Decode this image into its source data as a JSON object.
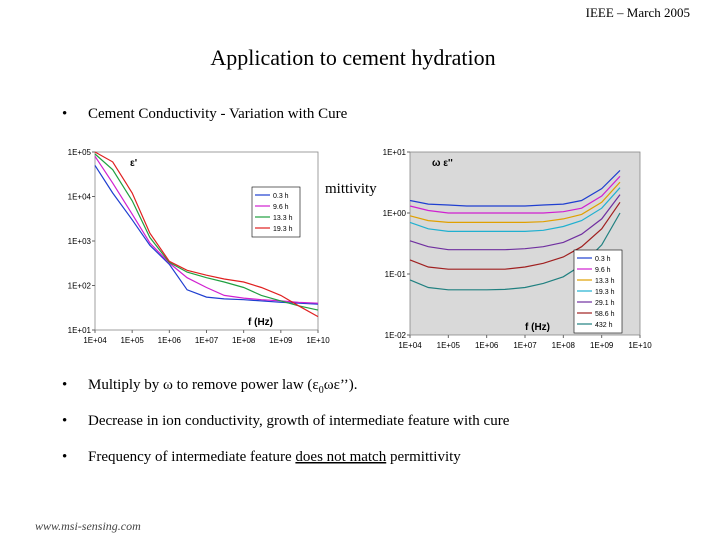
{
  "header": {
    "text": "IEEE – March 2005"
  },
  "title": "Application to cement hydration",
  "bullets": [
    {
      "text": "Cement Conductivity - Variation with Cure"
    },
    {
      "text": "mittivity"
    },
    {
      "parts": [
        "Multiply by ω to remove power law (ε",
        "0",
        "ωε’’)."
      ]
    },
    {
      "text": "Decrease in ion conductivity, growth of intermediate feature with cure"
    },
    {
      "parts": [
        "Frequency of intermediate feature ",
        "does not match",
        " permittivity"
      ]
    }
  ],
  "footer": "www.msi-sensing.com",
  "chart_data": [
    {
      "type": "line",
      "y_label": "ε'",
      "x_label": "f (Hz)",
      "log_x": true,
      "log_y": true,
      "legend": "upper right",
      "x": [
        10000,
        30000,
        100000,
        300000,
        1000000,
        3000000,
        10000000,
        30000000,
        100000000,
        300000000,
        1000000000,
        3000000000,
        10000000000
      ],
      "xlim": [
        10000,
        10000000000
      ],
      "xticks": [
        {
          "value": 10000,
          "label": "1E+04"
        },
        {
          "value": 100000,
          "label": "1E+05"
        },
        {
          "value": 1000000,
          "label": "1E+06"
        },
        {
          "value": 10000000,
          "label": "1E+07"
        },
        {
          "value": 100000000,
          "label": "1E+08"
        },
        {
          "value": 1000000000,
          "label": "1E+09"
        },
        {
          "value": 10000000000,
          "label": "1E+10"
        }
      ],
      "ylim": [
        10,
        100000
      ],
      "yticks": [
        {
          "value": 100000,
          "label": "1E+05"
        },
        {
          "value": 10000,
          "label": "1E+04"
        },
        {
          "value": 1000,
          "label": "1E+03"
        },
        {
          "value": 100,
          "label": "1E+02"
        },
        {
          "value": 10,
          "label": "1E+01"
        }
      ],
      "series": [
        {
          "name": "0.3 h",
          "color": "#1f3fd0",
          "values": [
            50000,
            12000,
            3000,
            800,
            300,
            80,
            55,
            50,
            48,
            45,
            42,
            40,
            38
          ]
        },
        {
          "name": "9.6 h",
          "color": "#d020d0",
          "values": [
            80000,
            20000,
            4000,
            900,
            320,
            150,
            90,
            60,
            52,
            48,
            45,
            42,
            40
          ]
        },
        {
          "name": "13.3 h",
          "color": "#20a040",
          "values": [
            90000,
            40000,
            8000,
            1200,
            330,
            200,
            150,
            120,
            90,
            60,
            45,
            35,
            28
          ]
        },
        {
          "name": "19.3 h",
          "color": "#e02020",
          "values": [
            100000,
            60000,
            12000,
            1500,
            350,
            220,
            170,
            140,
            120,
            90,
            60,
            35,
            20
          ]
        }
      ]
    },
    {
      "type": "line",
      "y_label": "ω ε''",
      "x_label": "f (Hz)",
      "log_x": true,
      "log_y": true,
      "legend": "lower right",
      "x": [
        10000,
        30000,
        100000,
        300000,
        1000000,
        3000000,
        10000000,
        30000000,
        100000000,
        300000000,
        1000000000,
        3000000000
      ],
      "xlim": [
        10000,
        10000000000
      ],
      "xticks": [
        {
          "value": 10000,
          "label": "1E+04"
        },
        {
          "value": 100000,
          "label": "1E+05"
        },
        {
          "value": 1000000,
          "label": "1E+06"
        },
        {
          "value": 10000000,
          "label": "1E+07"
        },
        {
          "value": 100000000,
          "label": "1E+08"
        },
        {
          "value": 1000000000,
          "label": "1E+09"
        },
        {
          "value": 10000000000,
          "label": "1E+10"
        }
      ],
      "ylim": [
        0.01,
        10
      ],
      "yticks": [
        {
          "value": 10,
          "label": "1E+01"
        },
        {
          "value": 1,
          "label": "1E+00"
        },
        {
          "value": 0.1,
          "label": "1E-01"
        },
        {
          "value": 0.01,
          "label": "1E-02"
        }
      ],
      "series": [
        {
          "name": "0.3 h",
          "color": "#1f3fd0",
          "values": [
            1.6,
            1.4,
            1.35,
            1.3,
            1.3,
            1.3,
            1.3,
            1.35,
            1.4,
            1.6,
            2.5,
            5
          ]
        },
        {
          "name": "9.6 h",
          "color": "#d020d0",
          "values": [
            1.3,
            1.1,
            1.0,
            1.0,
            1.0,
            1.0,
            1.0,
            1.0,
            1.05,
            1.2,
            1.9,
            4
          ]
        },
        {
          "name": "13.3 h",
          "color": "#e0a000",
          "values": [
            0.9,
            0.75,
            0.7,
            0.7,
            0.7,
            0.7,
            0.7,
            0.72,
            0.8,
            0.95,
            1.5,
            3.2
          ]
        },
        {
          "name": "19.3 h",
          "color": "#20b0d0",
          "values": [
            0.7,
            0.55,
            0.5,
            0.5,
            0.5,
            0.5,
            0.5,
            0.52,
            0.6,
            0.75,
            1.2,
            2.6
          ]
        },
        {
          "name": "29.1 h",
          "color": "#7030a0",
          "values": [
            0.35,
            0.28,
            0.25,
            0.25,
            0.25,
            0.25,
            0.26,
            0.28,
            0.33,
            0.45,
            0.8,
            2
          ]
        },
        {
          "name": "58.6 h",
          "color": "#a02020",
          "values": [
            0.17,
            0.13,
            0.12,
            0.12,
            0.12,
            0.12,
            0.13,
            0.15,
            0.19,
            0.28,
            0.55,
            1.5
          ]
        },
        {
          "name": "432 h",
          "color": "#208080",
          "values": [
            0.08,
            0.06,
            0.055,
            0.055,
            0.055,
            0.056,
            0.06,
            0.07,
            0.09,
            0.14,
            0.3,
            1
          ]
        }
      ]
    }
  ]
}
